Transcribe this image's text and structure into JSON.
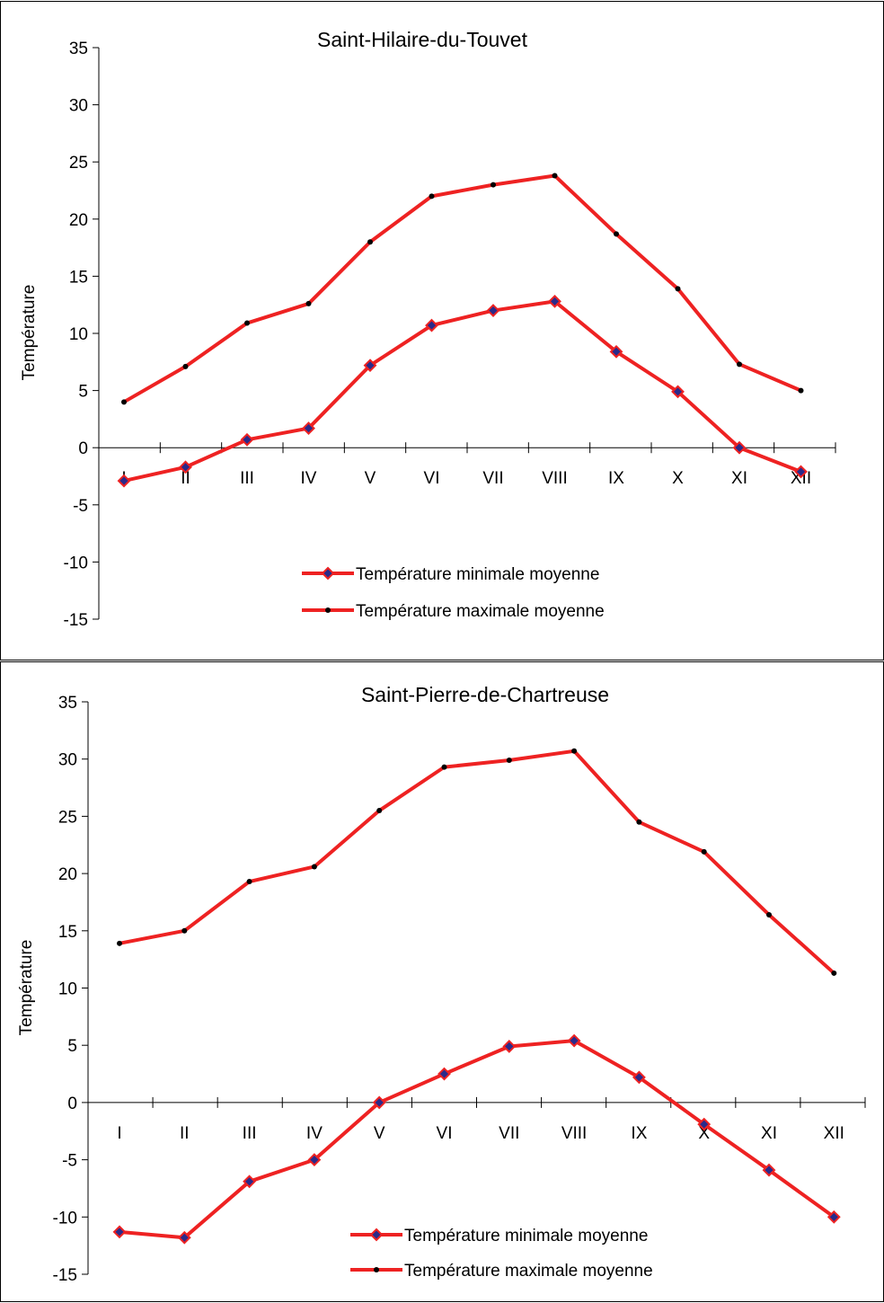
{
  "colors": {
    "line": "#ee2222",
    "marker_min": "#2a2a8a",
    "marker_max": "#000000",
    "frame": "#000000"
  },
  "chart_data": [
    {
      "type": "line",
      "title": "Saint-Hilaire-du-Touvet",
      "xlabel": "",
      "ylabel": "Température",
      "ylim": [
        -15,
        35
      ],
      "yticks": [
        "-15",
        "-10",
        "-5",
        "0",
        "5",
        "10",
        "15",
        "20",
        "25",
        "30",
        "35"
      ],
      "categories": [
        "I",
        "II",
        "III",
        "IV",
        "V",
        "VI",
        "VII",
        "VIII",
        "IX",
        "X",
        "XI",
        "XII"
      ],
      "grid": false,
      "legend_position": "bottom-center",
      "series": [
        {
          "name": "Température minimale moyenne",
          "marker": "diamond",
          "values": [
            -2.9,
            -1.7,
            0.7,
            1.7,
            7.2,
            10.7,
            12.0,
            12.8,
            8.4,
            4.9,
            0.0,
            -2.1
          ]
        },
        {
          "name": "Température maximale moyenne",
          "marker": "dot",
          "values": [
            4.0,
            7.1,
            10.9,
            12.6,
            18.0,
            22.0,
            23.0,
            23.8,
            18.7,
            13.9,
            7.3,
            5.0
          ]
        }
      ]
    },
    {
      "type": "line",
      "title": "Saint-Pierre-de-Chartreuse",
      "xlabel": "",
      "ylabel": "Température",
      "ylim": [
        -15,
        35
      ],
      "yticks": [
        "-15",
        "-10",
        "-5",
        "0",
        "5",
        "10",
        "15",
        "20",
        "25",
        "30",
        "35"
      ],
      "categories": [
        "I",
        "II",
        "III",
        "IV",
        "V",
        "VI",
        "VII",
        "VIII",
        "IX",
        "X",
        "XI",
        "XII"
      ],
      "grid": false,
      "legend_position": "bottom-center",
      "series": [
        {
          "name": "Température minimale moyenne",
          "marker": "diamond",
          "values": [
            -11.3,
            -11.8,
            -6.9,
            -5.0,
            0.0,
            2.5,
            4.9,
            5.4,
            2.2,
            -1.9,
            -5.9,
            -10.0
          ]
        },
        {
          "name": "Température maximale moyenne",
          "marker": "dot",
          "values": [
            13.9,
            15.0,
            19.3,
            20.6,
            25.5,
            29.3,
            29.9,
            30.7,
            24.5,
            21.9,
            16.4,
            11.3
          ]
        }
      ]
    }
  ]
}
